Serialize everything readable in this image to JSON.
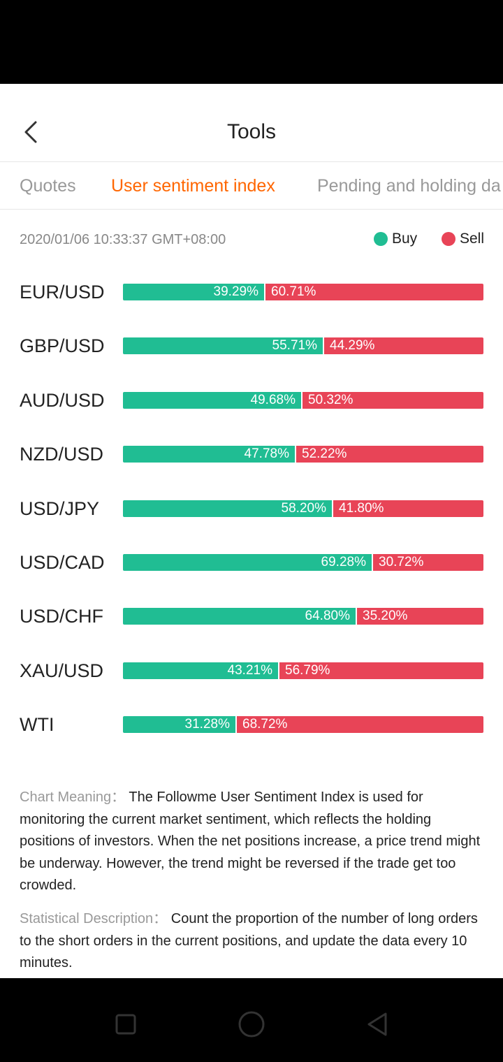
{
  "header": {
    "title": "Tools"
  },
  "tabs": [
    {
      "label": "Quotes",
      "active": false
    },
    {
      "label": "User sentiment index",
      "active": true
    },
    {
      "label": "Pending and holding da",
      "active": false
    }
  ],
  "meta": {
    "timestamp": "2020/01/06 10:33:37 GMT+08:00"
  },
  "legend": {
    "buy": "Buy",
    "sell": "Sell"
  },
  "colors": {
    "buy": "#20bd93",
    "sell": "#e84457",
    "accent": "#ff6600"
  },
  "sentiment": [
    {
      "pair": "EUR/USD",
      "buy": 39.29,
      "sell": 60.71,
      "buy_label": "39.29%",
      "sell_label": "60.71%"
    },
    {
      "pair": "GBP/USD",
      "buy": 55.71,
      "sell": 44.29,
      "buy_label": "55.71%",
      "sell_label": "44.29%"
    },
    {
      "pair": "AUD/USD",
      "buy": 49.68,
      "sell": 50.32,
      "buy_label": "49.68%",
      "sell_label": "50.32%"
    },
    {
      "pair": "NZD/USD",
      "buy": 47.78,
      "sell": 52.22,
      "buy_label": "47.78%",
      "sell_label": "52.22%"
    },
    {
      "pair": "USD/JPY",
      "buy": 58.2,
      "sell": 41.8,
      "buy_label": "58.20%",
      "sell_label": "41.80%"
    },
    {
      "pair": "USD/CAD",
      "buy": 69.28,
      "sell": 30.72,
      "buy_label": "69.28%",
      "sell_label": "30.72%"
    },
    {
      "pair": "USD/CHF",
      "buy": 64.8,
      "sell": 35.2,
      "buy_label": "64.80%",
      "sell_label": "35.20%"
    },
    {
      "pair": "XAU/USD",
      "buy": 43.21,
      "sell": 56.79,
      "buy_label": "43.21%",
      "sell_label": "56.79%"
    },
    {
      "pair": "WTI",
      "buy": 31.28,
      "sell": 68.72,
      "buy_label": "31.28%",
      "sell_label": "68.72%"
    }
  ],
  "description": {
    "chart_meaning_label": "Chart Meaning：",
    "chart_meaning_text": "The Followme User Sentiment Index is used for monitoring the current market sentiment, which reflects the holding positions of investors. When the net positions increase, a price trend might be underway. However, the trend might be reversed if the trade get too crowded.",
    "statistical_label": "Statistical Description：",
    "statistical_text": "Count the proportion of the number of long orders to the short orders in the current positions, and update the data every 10 minutes."
  },
  "nav": {
    "recents_icon": "square-icon",
    "home_icon": "circle-icon",
    "back_icon": "triangle-back-icon"
  }
}
